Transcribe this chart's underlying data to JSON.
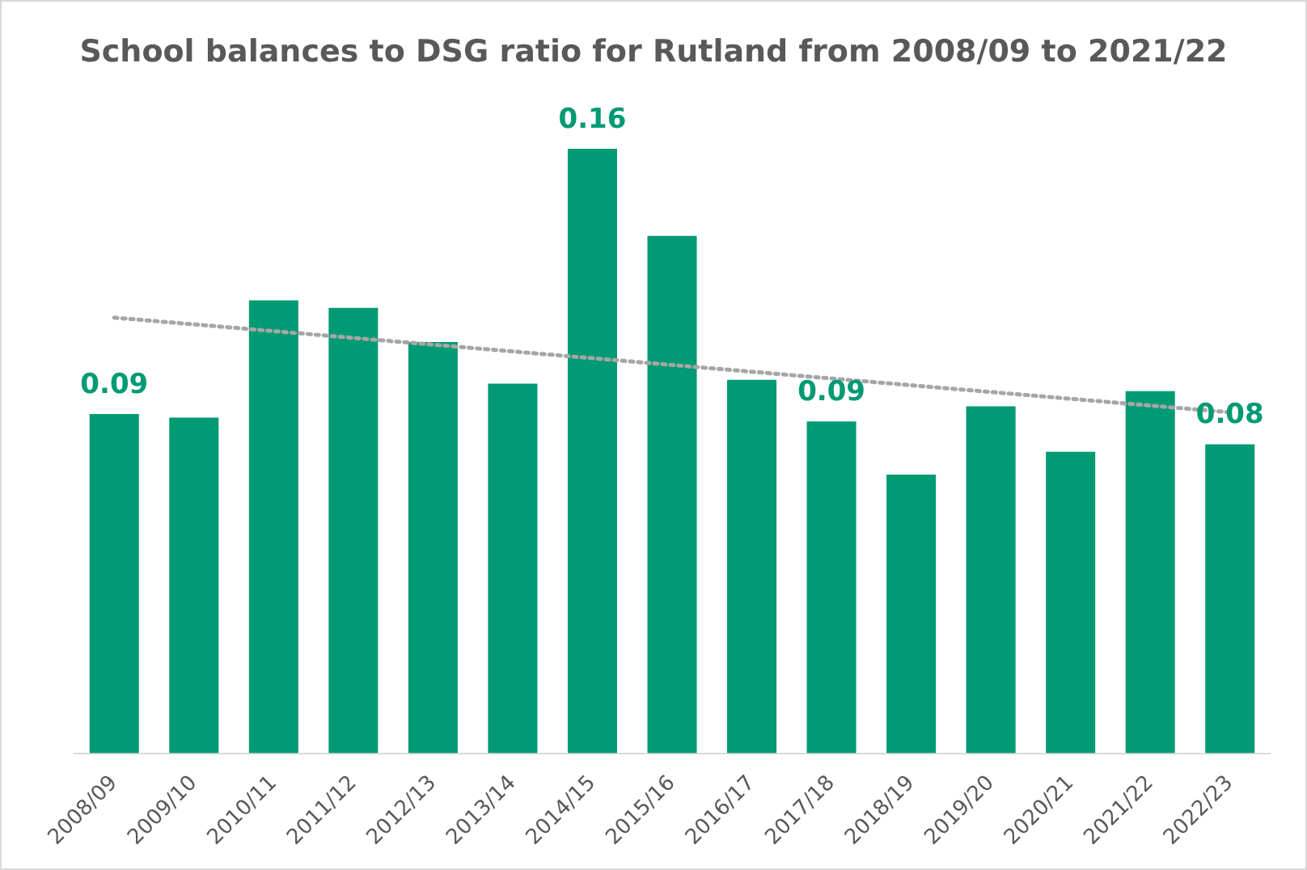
{
  "chart_data": {
    "type": "bar",
    "title": "School balances to DSG ratio for Rutland from 2008/09 to 2021/22",
    "categories": [
      "2008/09",
      "2009/10",
      "2010/11",
      "2011/12",
      "2012/13",
      "2013/14",
      "2014/15",
      "2015/16",
      "2016/17",
      "2017/18",
      "2018/19",
      "2019/20",
      "2020/21",
      "2021/22",
      "2022/23"
    ],
    "series": [
      {
        "color": "#009a74",
        "values": [
          0.09,
          0.089,
          0.12,
          0.118,
          0.109,
          0.098,
          0.16,
          0.137,
          0.099,
          0.088,
          0.074,
          0.092,
          0.08,
          0.096,
          0.082
        ],
        "value_labels": [
          "0.09",
          null,
          null,
          null,
          null,
          null,
          "0.16",
          null,
          null,
          "0.09",
          null,
          null,
          null,
          null,
          "0.08"
        ]
      },
      {
        "type": "line",
        "color": "#a6a6a6",
        "x": [
          "2008/09",
          "2022/23"
        ],
        "values": [
          0.115,
          0.09
        ],
        "line_style": "dotted",
        "marker": "none"
      }
    ],
    "grid": false,
    "legend": false,
    "tick_labels": "x"
  }
}
